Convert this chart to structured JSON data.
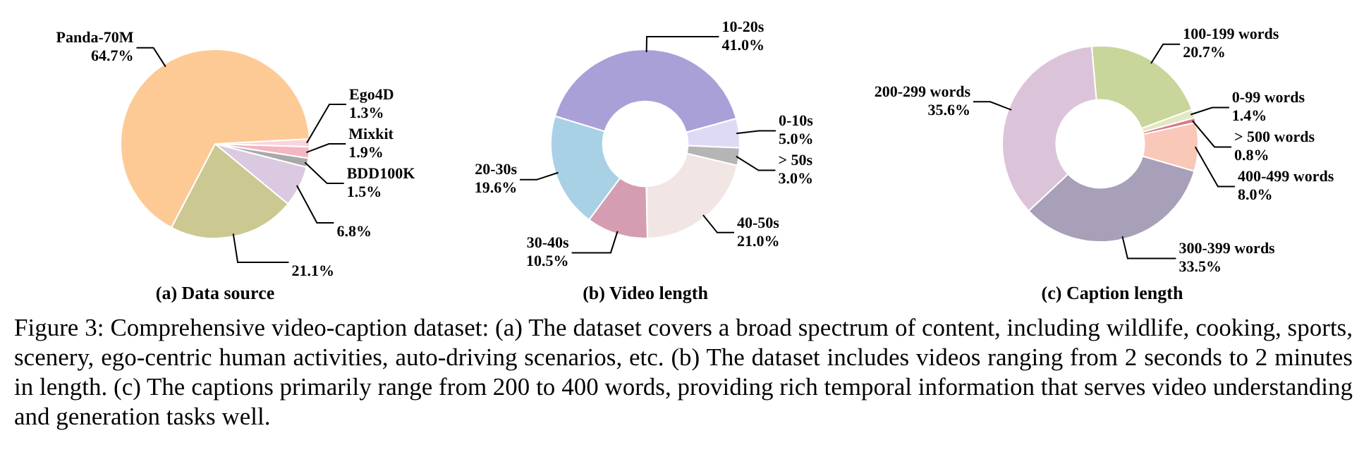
{
  "chart_data": [
    {
      "type": "pie",
      "title": "(a) Data source",
      "categories": [
        "Ego4D",
        "Mixkit",
        "BDD100K",
        null,
        null,
        "Panda-70M"
      ],
      "values": [
        1.3,
        1.9,
        1.5,
        6.8,
        21.1,
        64.7
      ],
      "value_labels": [
        "1.3%",
        "1.9%",
        "1.5%",
        "6.8%",
        "21.1%",
        "64.7%"
      ],
      "colors": [
        "#fbd3dc",
        "#f4b6c2",
        "#a9a9a9",
        "#dac9e0",
        "#cbc891",
        "#fdca96"
      ],
      "legend": false
    },
    {
      "type": "donut",
      "title": "(b) Video length",
      "categories": [
        "10-20s",
        "0-10s",
        "> 50s",
        "40-50s",
        "30-40s",
        "20-30s"
      ],
      "values": [
        41.0,
        5.0,
        3.0,
        21.0,
        10.5,
        19.6
      ],
      "value_labels": [
        "41.0%",
        "5.0%",
        "3.0%",
        "21.0%",
        "10.5%",
        "19.6%"
      ],
      "colors": [
        "#aaa0d8",
        "#dedaf6",
        "#b5b5b5",
        "#f1e6e4",
        "#d59db2",
        "#a9d1e5"
      ],
      "legend": false
    },
    {
      "type": "donut",
      "title": "(c) Caption length",
      "categories": [
        "100-199 words",
        "0-99 words",
        "> 500 words",
        "400-499 words",
        "300-399 words",
        "200-299 words"
      ],
      "values": [
        20.7,
        1.4,
        0.8,
        8.0,
        33.5,
        35.6
      ],
      "value_labels": [
        "20.7%",
        "1.4%",
        "0.8%",
        "8.0%",
        "33.5%",
        "35.6%"
      ],
      "colors": [
        "#c8d59b",
        "#e2e9c2",
        "#d97a8b",
        "#f9c8b8",
        "#a8a0b8",
        "#dbc4da"
      ],
      "legend": false
    },
    {
      "type": "other",
      "annotations": [
        "Figure 3: Comprehensive video-caption dataset: (a) The dataset covers a broad spectrum of content, including wildlife, cooking, sports, scenery, ego-centric human activities, auto-driving scenarios, etc. (b) The dataset includes videos ranging from 2 seconds to 2 minutes in length. (c) The captions primarily range from 200 to 400 words, providing rich temporal information that serves video understanding and generation tasks well."
      ]
    }
  ]
}
